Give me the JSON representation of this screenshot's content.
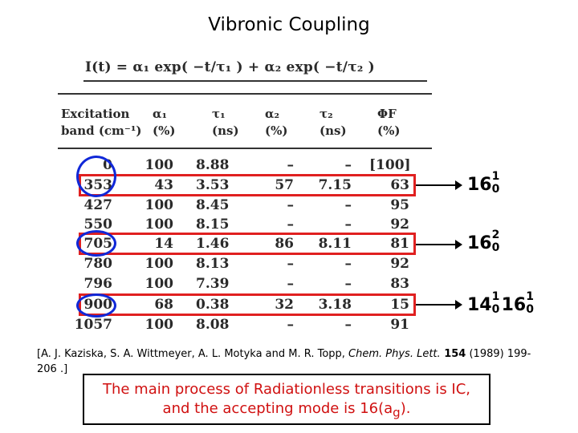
{
  "title": "Vibronic Coupling",
  "formula": {
    "text": "I(t) = α₁ exp( −t/τ₁ ) + α₂ exp( −t/τ₂ )"
  },
  "table": {
    "headers": {
      "band_line1": "Excitation",
      "band_line2": "band (cm⁻¹)",
      "a1_line1": "α₁",
      "a1_line2": "(%)",
      "t1_line1": "τ₁",
      "t1_line2": "(ns)",
      "a2_line1": "α₂",
      "a2_line2": "(%)",
      "t2_line1": "τ₂",
      "t2_line2": "(ns)",
      "phi_line1": "ΦF",
      "phi_line2": "(%)"
    },
    "rows": [
      {
        "band": "0",
        "a1": "100",
        "t1": "8.88",
        "a2": "–",
        "t2": "–",
        "phi": "[100]"
      },
      {
        "band": "353",
        "a1": "43",
        "t1": "3.53",
        "a2": "57",
        "t2": "7.15",
        "phi": "63"
      },
      {
        "band": "427",
        "a1": "100",
        "t1": "8.45",
        "a2": "–",
        "t2": "–",
        "phi": "95"
      },
      {
        "band": "550",
        "a1": "100",
        "t1": "8.15",
        "a2": "–",
        "t2": "–",
        "phi": "92"
      },
      {
        "band": "705",
        "a1": "14",
        "t1": "1.46",
        "a2": "86",
        "t2": "8.11",
        "phi": "81"
      },
      {
        "band": "780",
        "a1": "100",
        "t1": "8.13",
        "a2": "–",
        "t2": "–",
        "phi": "92"
      },
      {
        "band": "796",
        "a1": "100",
        "t1": "7.39",
        "a2": "–",
        "t2": "–",
        "phi": "83"
      },
      {
        "band": "900",
        "a1": "68",
        "t1": "0.38",
        "a2": "32",
        "t2": "3.18",
        "phi": "15"
      },
      {
        "band": "1057",
        "a1": "100",
        "t1": "8.08",
        "a2": "–",
        "t2": "–",
        "phi": "91"
      }
    ]
  },
  "annotations": [
    {
      "base": "16",
      "sup": "1",
      "sub": "0"
    },
    {
      "base": "16",
      "sup": "2",
      "sub": "0"
    },
    {
      "base1": "14",
      "sup1": "1",
      "sub1": "0",
      "base2": "16",
      "sup2": "1",
      "sub2": "0"
    }
  ],
  "citation": {
    "text": "[A. J. Kaziska, S. A. Wittmeyer, A. L. Motyka and M. R. Topp, ",
    "journal": "Chem. Phys. Lett.",
    "volume": " 154",
    "rest": " (1989) 199-206 .]"
  },
  "conclusion": {
    "line1": "The main process of Radiationless transitions is IC,",
    "line2_prefix": "and the accepting mode is 16(a",
    "line2_sub": "g",
    "line2_suffix": ")."
  },
  "colors": {
    "highlight_box": "#e02020",
    "circle": "#1028d8",
    "conclusion_text": "#d01010"
  }
}
